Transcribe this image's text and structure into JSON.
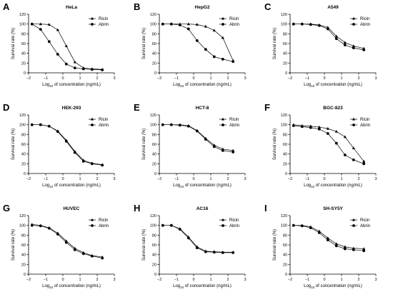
{
  "figure": {
    "ytick_labels": [
      "0",
      "20",
      "40",
      "60",
      "80",
      "100",
      "120"
    ],
    "xtick_labels": [
      "−2",
      "−1",
      "0",
      "1",
      "2",
      "3"
    ],
    "ylabel": "Survival rate (%)",
    "xlabel_prefix": "Log",
    "xlabel_sub": "10",
    "xlabel_suffix": " of concentration (ng/mL)",
    "legend": [
      "Ricin",
      "Abrin"
    ]
  },
  "chart_data": [
    {
      "type": "line",
      "panel_label": "A",
      "title": "HeLa",
      "xlabel": "Log10 of concentration (ng/mL)",
      "ylabel": "Survival rate (%)",
      "xlim": [
        -2,
        3
      ],
      "ylim": [
        0,
        120
      ],
      "x": [
        -1.8,
        -1.3,
        -0.8,
        -0.3,
        0.2,
        0.7,
        1.2,
        1.7,
        2.3
      ],
      "series": [
        {
          "name": "Ricin",
          "marker": "triangle",
          "values": [
            100,
            100,
            99,
            88,
            55,
            22,
            10,
            8,
            7
          ]
        },
        {
          "name": "Abrin",
          "marker": "circle",
          "values": [
            100,
            89,
            64,
            38,
            18,
            10,
            8,
            7,
            6
          ]
        }
      ]
    },
    {
      "type": "line",
      "panel_label": "B",
      "title": "HepG2",
      "xlabel": "Log10 of concentration (ng/mL)",
      "ylabel": "Survival rate (%)",
      "xlim": [
        -2,
        3
      ],
      "ylim": [
        0,
        120
      ],
      "x": [
        -1.8,
        -1.3,
        -0.8,
        -0.3,
        0.2,
        0.7,
        1.2,
        1.7,
        2.3
      ],
      "series": [
        {
          "name": "Ricin",
          "marker": "triangle",
          "values": [
            100,
            100,
            100,
            100,
            99,
            95,
            87,
            72,
            25
          ]
        },
        {
          "name": "Abrin",
          "marker": "circle",
          "values": [
            100,
            100,
            98,
            90,
            66,
            48,
            33,
            28,
            23
          ]
        }
      ]
    },
    {
      "type": "line",
      "panel_label": "C",
      "title": "A549",
      "xlabel": "Log10 of concentration (ng/mL)",
      "ylabel": "Survival rate (%)",
      "xlim": [
        -2,
        3
      ],
      "ylim": [
        0,
        120
      ],
      "x": [
        -1.8,
        -1.3,
        -0.8,
        -0.3,
        0.2,
        0.7,
        1.2,
        1.7,
        2.3
      ],
      "series": [
        {
          "name": "Ricin",
          "marker": "triangle",
          "values": [
            100,
            100,
            100,
            98,
            93,
            75,
            62,
            55,
            50
          ]
        },
        {
          "name": "Abrin",
          "marker": "circle",
          "values": [
            100,
            100,
            99,
            97,
            90,
            70,
            57,
            51,
            47
          ]
        }
      ]
    },
    {
      "type": "line",
      "panel_label": "D",
      "title": "HEK-293",
      "xlabel": "Log10 of concentration (ng/mL)",
      "ylabel": "Survival rate (%)",
      "xlim": [
        -2,
        3
      ],
      "ylim": [
        0,
        120
      ],
      "x": [
        -1.8,
        -1.3,
        -0.8,
        -0.3,
        0.2,
        0.7,
        1.2,
        1.7,
        2.3
      ],
      "series": [
        {
          "name": "Ricin",
          "marker": "triangle",
          "values": [
            100,
            100,
            97,
            87,
            68,
            45,
            27,
            21,
            18
          ]
        },
        {
          "name": "Abrin",
          "marker": "circle",
          "values": [
            100,
            100,
            97,
            86,
            66,
            43,
            25,
            20,
            17
          ]
        }
      ]
    },
    {
      "type": "line",
      "panel_label": "E",
      "title": "HCT-8",
      "xlabel": "Log10 of concentration (ng/mL)",
      "ylabel": "Survival rate (%)",
      "xlim": [
        -2,
        3
      ],
      "ylim": [
        0,
        120
      ],
      "x": [
        -1.8,
        -1.3,
        -0.8,
        -0.3,
        0.2,
        0.7,
        1.2,
        1.7,
        2.3
      ],
      "series": [
        {
          "name": "Ricin",
          "marker": "triangle",
          "values": [
            100,
            100,
            100,
            98,
            88,
            72,
            58,
            50,
            47
          ]
        },
        {
          "name": "Abrin",
          "marker": "circle",
          "values": [
            100,
            100,
            99,
            97,
            87,
            70,
            55,
            47,
            44
          ]
        }
      ]
    },
    {
      "type": "line",
      "panel_label": "F",
      "title": "BGC-823",
      "xlabel": "Log10 of concentration (ng/mL)",
      "ylabel": "Survival rate (%)",
      "xlim": [
        -2,
        3
      ],
      "ylim": [
        0,
        120
      ],
      "x": [
        -1.8,
        -1.3,
        -0.8,
        -0.3,
        0.2,
        0.7,
        1.2,
        1.7,
        2.3
      ],
      "series": [
        {
          "name": "Ricin",
          "marker": "triangle",
          "values": [
            100,
            98,
            97,
            95,
            92,
            86,
            75,
            52,
            25
          ]
        },
        {
          "name": "Abrin",
          "marker": "circle",
          "values": [
            98,
            96,
            94,
            91,
            82,
            62,
            38,
            28,
            20
          ]
        }
      ]
    },
    {
      "type": "line",
      "panel_label": "G",
      "title": "HUVEC",
      "xlabel": "Log10 of concentration (ng/mL)",
      "ylabel": "Survival rate (%)",
      "xlim": [
        -2,
        3
      ],
      "ylim": [
        0,
        120
      ],
      "x": [
        -1.8,
        -1.3,
        -0.8,
        -0.3,
        0.2,
        0.7,
        1.2,
        1.7,
        2.3
      ],
      "series": [
        {
          "name": "Ricin",
          "marker": "triangle",
          "values": [
            102,
            100,
            95,
            84,
            68,
            53,
            44,
            38,
            35
          ]
        },
        {
          "name": "Abrin",
          "marker": "circle",
          "values": [
            100,
            99,
            94,
            82,
            65,
            50,
            42,
            37,
            33
          ]
        }
      ]
    },
    {
      "type": "line",
      "panel_label": "H",
      "title": "AC16",
      "xlabel": "Log10 of concentration (ng/mL)",
      "ylabel": "Survival rate (%)",
      "xlim": [
        -2,
        3
      ],
      "ylim": [
        0,
        120
      ],
      "x": [
        -1.8,
        -1.3,
        -0.8,
        -0.3,
        0.2,
        0.7,
        1.2,
        1.7,
        2.3
      ],
      "series": [
        {
          "name": "Ricin",
          "marker": "triangle",
          "values": [
            100,
            100,
            93,
            76,
            56,
            47,
            46,
            45,
            45
          ]
        },
        {
          "name": "Abrin",
          "marker": "circle",
          "values": [
            100,
            100,
            92,
            74,
            54,
            46,
            45,
            44,
            44
          ]
        }
      ]
    },
    {
      "type": "line",
      "panel_label": "I",
      "title": "SH-SY5Y",
      "xlabel": "Log10 of concentration (ng/mL)",
      "ylabel": "Survival rate (%)",
      "xlim": [
        -2,
        3
      ],
      "ylim": [
        0,
        120
      ],
      "x": [
        -1.8,
        -1.3,
        -0.8,
        -0.3,
        0.2,
        0.7,
        1.2,
        1.7,
        2.3
      ],
      "series": [
        {
          "name": "Ricin",
          "marker": "triangle",
          "values": [
            100,
            100,
            97,
            88,
            74,
            62,
            56,
            53,
            52
          ]
        },
        {
          "name": "Abrin",
          "marker": "circle",
          "values": [
            100,
            99,
            95,
            85,
            70,
            58,
            52,
            50,
            48
          ]
        }
      ]
    }
  ]
}
